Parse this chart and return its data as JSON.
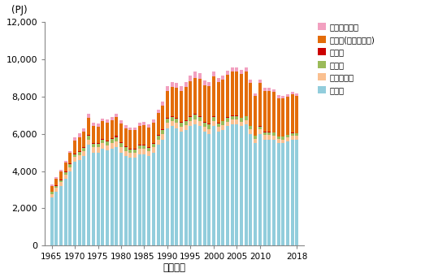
{
  "years": [
    1965,
    1966,
    1967,
    1968,
    1969,
    1970,
    1971,
    1972,
    1973,
    1974,
    1975,
    1976,
    1977,
    1978,
    1979,
    1980,
    1981,
    1982,
    1983,
    1984,
    1985,
    1986,
    1987,
    1988,
    1989,
    1990,
    1991,
    1992,
    1993,
    1994,
    1995,
    1996,
    1997,
    1998,
    1999,
    2000,
    2001,
    2002,
    2003,
    2004,
    2005,
    2006,
    2007,
    2008,
    2009,
    2010,
    2011,
    2012,
    2013,
    2014,
    2015,
    2016,
    2017,
    2018
  ],
  "manufacturing": [
    2600,
    2900,
    3200,
    3600,
    4000,
    4500,
    4600,
    4800,
    5400,
    5000,
    5000,
    5200,
    5100,
    5200,
    5300,
    5000,
    4800,
    4700,
    4700,
    4900,
    4900,
    4800,
    5000,
    5400,
    5700,
    6300,
    6400,
    6300,
    6100,
    6200,
    6400,
    6500,
    6400,
    6100,
    6000,
    6400,
    6100,
    6200,
    6400,
    6500,
    6500,
    6400,
    6500,
    6000,
    5500,
    6000,
    5700,
    5700,
    5700,
    5500,
    5500,
    5600,
    5700,
    5700
  ],
  "agriculture": [
    180,
    190,
    200,
    210,
    220,
    250,
    260,
    270,
    290,
    280,
    280,
    290,
    290,
    300,
    310,
    300,
    290,
    285,
    285,
    290,
    290,
    280,
    280,
    280,
    280,
    280,
    280,
    280,
    270,
    270,
    270,
    270,
    270,
    260,
    260,
    260,
    255,
    250,
    250,
    250,
    250,
    245,
    240,
    235,
    225,
    230,
    225,
    220,
    210,
    205,
    200,
    195,
    190,
    185
  ],
  "construction": [
    100,
    110,
    120,
    130,
    140,
    160,
    170,
    180,
    200,
    190,
    190,
    200,
    200,
    210,
    220,
    200,
    190,
    185,
    185,
    190,
    195,
    180,
    190,
    200,
    210,
    230,
    230,
    230,
    225,
    230,
    240,
    250,
    250,
    240,
    235,
    230,
    215,
    210,
    210,
    205,
    200,
    195,
    190,
    175,
    160,
    165,
    160,
    155,
    150,
    145,
    145,
    140,
    140,
    135
  ],
  "mining": [
    30,
    32,
    34,
    36,
    38,
    45,
    47,
    48,
    52,
    50,
    48,
    50,
    50,
    50,
    52,
    48,
    45,
    43,
    42,
    43,
    42,
    40,
    40,
    42,
    43,
    45,
    45,
    43,
    41,
    41,
    41,
    41,
    40,
    38,
    37,
    37,
    35,
    34,
    34,
    33,
    32,
    31,
    30,
    28,
    25,
    26,
    25,
    24,
    23,
    22,
    21,
    20,
    20,
    19
  ],
  "service": [
    300,
    360,
    420,
    490,
    580,
    700,
    750,
    800,
    900,
    880,
    870,
    920,
    940,
    980,
    1020,
    1000,
    980,
    970,
    980,
    1010,
    1030,
    1050,
    1100,
    1180,
    1270,
    1450,
    1550,
    1620,
    1650,
    1750,
    1850,
    1950,
    1980,
    1970,
    2020,
    2150,
    2150,
    2200,
    2280,
    2350,
    2370,
    2350,
    2380,
    2280,
    2100,
    2300,
    2200,
    2200,
    2150,
    2050,
    2050,
    2050,
    2050,
    2000
  ],
  "non_energy": [
    60,
    70,
    80,
    90,
    110,
    150,
    180,
    200,
    220,
    180,
    160,
    170,
    170,
    180,
    190,
    175,
    160,
    155,
    155,
    165,
    165,
    155,
    165,
    190,
    210,
    250,
    280,
    270,
    260,
    290,
    300,
    310,
    290,
    240,
    240,
    250,
    220,
    220,
    220,
    220,
    215,
    200,
    210,
    180,
    150,
    170,
    160,
    155,
    150,
    140,
    135,
    130,
    130,
    125
  ],
  "colors": {
    "manufacturing": "#92CDDC",
    "agriculture": "#FAC090",
    "construction": "#9BBB59",
    "mining": "#CC0000",
    "service": "#E36C09",
    "non_energy": "#F2A0C0"
  },
  "legend_labels": [
    "非エネルギー",
    "業務他(第三次産業)",
    "鉱業他",
    "建設業",
    "農林水産業",
    "製造業"
  ],
  "ylabel": "(PJ)",
  "xlabel": "（年度）",
  "ylim": [
    0,
    12000
  ],
  "yticks": [
    0,
    2000,
    4000,
    6000,
    8000,
    10000,
    12000
  ],
  "xtick_years": [
    1965,
    1970,
    1975,
    1980,
    1985,
    1990,
    1995,
    2000,
    2005,
    2010,
    2018
  ],
  "xlim": [
    1963.5,
    2019.5
  ],
  "bar_width": 0.7
}
